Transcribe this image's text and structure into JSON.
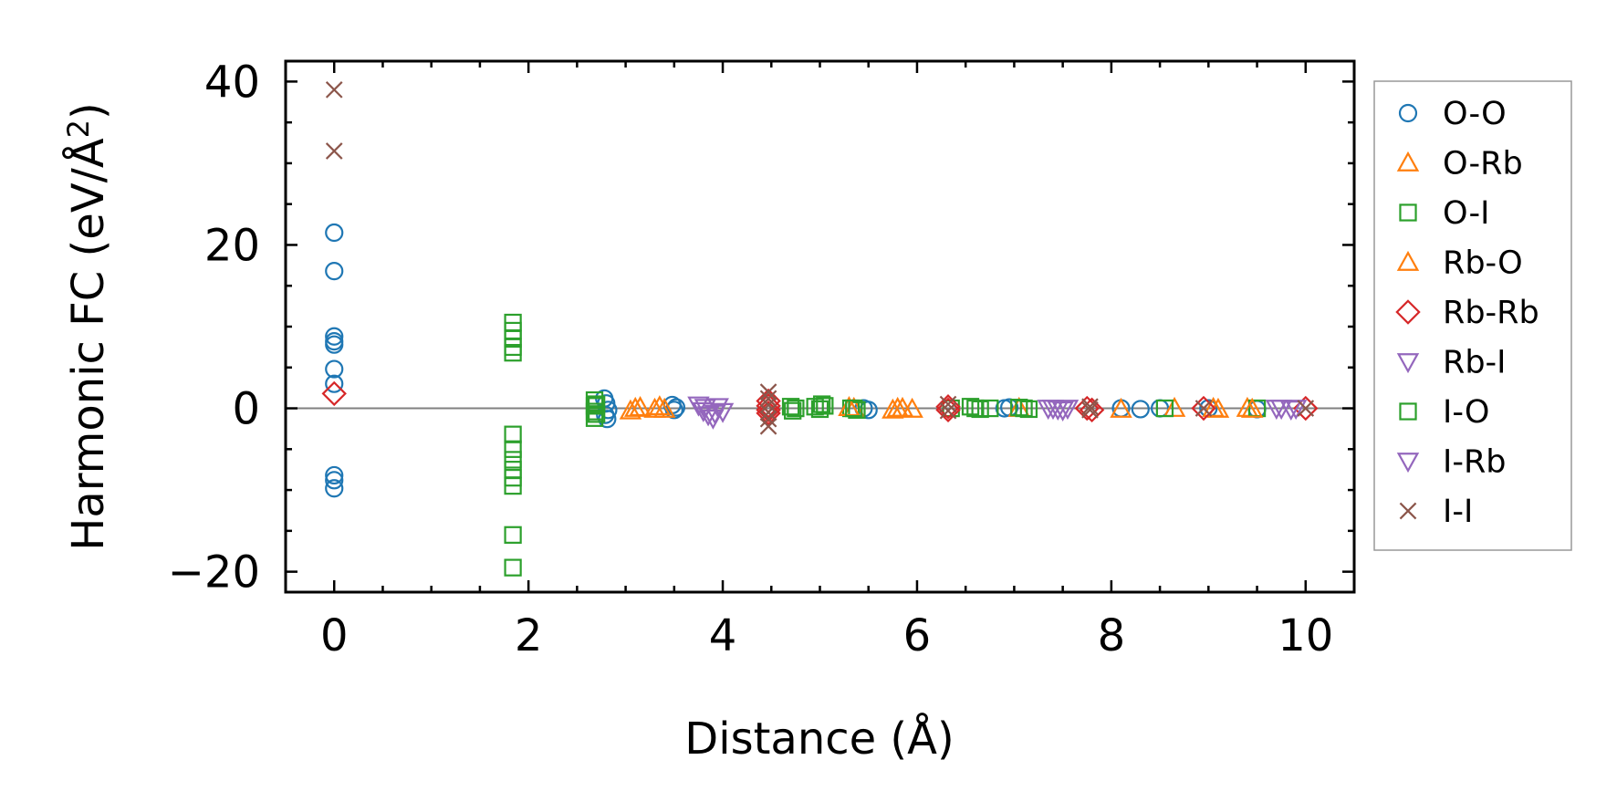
{
  "chart_data": {
    "type": "scatter",
    "xlabel": "Distance (Å)",
    "ylabel_main": "Harmonic FC (eV/Å",
    "ylabel_sup": "2",
    "ylabel_close": ")",
    "xlim": [
      -0.5,
      10.5
    ],
    "ylim": [
      -22.5,
      42.5
    ],
    "x_ticks": [
      0,
      2,
      4,
      6,
      8,
      10
    ],
    "x_tick_labels": [
      "0",
      "2",
      "4",
      "6",
      "8",
      "10"
    ],
    "y_ticks": [
      -20,
      0,
      20,
      40
    ],
    "y_tick_labels": [
      "−20",
      "0",
      "20",
      "40"
    ],
    "zero_line": true,
    "grid": false,
    "legend_position": "outside-right",
    "series": [
      {
        "name": "O-O",
        "marker": "circle",
        "color": "#1f77b4",
        "points": [
          [
            0,
            21.5
          ],
          [
            0,
            16.8
          ],
          [
            0,
            8.8
          ],
          [
            0,
            8.2
          ],
          [
            0,
            7.8
          ],
          [
            0,
            4.8
          ],
          [
            0,
            3.0
          ],
          [
            0,
            -8.2
          ],
          [
            0,
            -8.8
          ],
          [
            0,
            -9.8
          ],
          [
            2.78,
            1.2
          ],
          [
            2.8,
            0.6
          ],
          [
            2.82,
            -0.2
          ],
          [
            2.79,
            -0.8
          ],
          [
            2.81,
            -1.3
          ],
          [
            3.48,
            0.4
          ],
          [
            3.5,
            -0.2
          ],
          [
            3.52,
            0.1
          ],
          [
            5.45,
            0.0
          ],
          [
            5.5,
            -0.2
          ],
          [
            6.9,
            0.0
          ],
          [
            6.95,
            0.1
          ],
          [
            8.1,
            0.0
          ],
          [
            8.3,
            -0.1
          ],
          [
            8.5,
            0.0
          ],
          [
            9.0,
            0.0
          ],
          [
            9.5,
            -0.1
          ]
        ]
      },
      {
        "name": "O-Rb",
        "marker": "triangle-up",
        "color": "#ff7f0e",
        "points": [
          [
            3.05,
            -0.3
          ],
          [
            3.15,
            0.1
          ],
          [
            3.3,
            -0.1
          ],
          [
            3.35,
            0.2
          ],
          [
            5.35,
            0.0
          ],
          [
            5.75,
            -0.2
          ],
          [
            5.85,
            0.0
          ],
          [
            5.95,
            -0.1
          ],
          [
            7.05,
            0.0
          ],
          [
            8.1,
            -0.1
          ],
          [
            8.65,
            0.0
          ],
          [
            9.1,
            -0.1
          ],
          [
            9.4,
            0.0
          ]
        ]
      },
      {
        "name": "O-I",
        "marker": "square",
        "color": "#2ca02c",
        "points": [
          [
            1.84,
            10.5
          ],
          [
            1.84,
            9.5
          ],
          [
            1.84,
            8.5
          ],
          [
            1.84,
            7.5
          ],
          [
            1.84,
            6.8
          ],
          [
            1.84,
            -3.2
          ],
          [
            1.84,
            -5.0
          ],
          [
            1.84,
            -6.3
          ],
          [
            1.84,
            -7.5
          ],
          [
            1.84,
            -8.5
          ],
          [
            1.84,
            -9.5
          ],
          [
            1.84,
            -15.5
          ],
          [
            1.84,
            -19.5
          ],
          [
            2.68,
            1.0
          ],
          [
            2.68,
            0.3
          ],
          [
            2.68,
            -0.4
          ],
          [
            2.68,
            -1.2
          ],
          [
            4.7,
            0.2
          ],
          [
            4.72,
            -0.3
          ],
          [
            4.95,
            0.2
          ],
          [
            5.0,
            -0.1
          ],
          [
            5.05,
            0.3
          ],
          [
            5.32,
            0.0
          ],
          [
            5.38,
            -0.2
          ],
          [
            6.35,
            0.0
          ],
          [
            6.55,
            0.2
          ],
          [
            6.65,
            -0.1
          ],
          [
            6.75,
            0.0
          ],
          [
            7.05,
            0.1
          ],
          [
            7.15,
            -0.1
          ],
          [
            8.55,
            0.0
          ],
          [
            9.5,
            0.0
          ]
        ]
      },
      {
        "name": "Rb-O",
        "marker": "triangle-up",
        "color": "#ff7f0e",
        "points": [
          [
            3.1,
            0.0
          ],
          [
            3.4,
            -0.1
          ],
          [
            5.3,
            0.1
          ],
          [
            5.8,
            0.0
          ],
          [
            9.05,
            0.0
          ],
          [
            9.45,
            -0.1
          ]
        ]
      },
      {
        "name": "Rb-Rb",
        "marker": "diamond",
        "color": "#d62728",
        "points": [
          [
            0,
            1.8
          ],
          [
            4.47,
            0.9
          ],
          [
            4.47,
            0.3
          ],
          [
            4.47,
            -0.2
          ],
          [
            4.47,
            -0.6
          ],
          [
            6.32,
            0.2
          ],
          [
            6.32,
            -0.2
          ],
          [
            7.75,
            0.0
          ],
          [
            7.8,
            -0.2
          ],
          [
            8.95,
            0.0
          ],
          [
            10.0,
            0.0
          ]
        ]
      },
      {
        "name": "Rb-I",
        "marker": "triangle-down",
        "color": "#9467bd",
        "points": [
          [
            3.75,
            0.4
          ],
          [
            3.8,
            -0.3
          ],
          [
            3.85,
            -0.8
          ],
          [
            3.9,
            -1.2
          ],
          [
            3.95,
            0.2
          ],
          [
            4.0,
            -0.4
          ],
          [
            7.35,
            0.0
          ],
          [
            7.45,
            -0.1
          ],
          [
            7.55,
            0.0
          ],
          [
            9.7,
            0.0
          ],
          [
            9.85,
            -0.1
          ]
        ]
      },
      {
        "name": "I-O",
        "marker": "square",
        "color": "#2ca02c",
        "points": [
          [
            2.7,
            0.5
          ],
          [
            2.7,
            -0.7
          ],
          [
            4.75,
            0.0
          ],
          [
            5.02,
            0.5
          ],
          [
            5.35,
            0.0
          ],
          [
            6.6,
            0.0
          ],
          [
            7.1,
            0.0
          ]
        ]
      },
      {
        "name": "I-Rb",
        "marker": "triangle-down",
        "color": "#9467bd",
        "points": [
          [
            3.82,
            0.1
          ],
          [
            3.92,
            -0.6
          ],
          [
            7.4,
            0.0
          ],
          [
            7.5,
            -0.2
          ],
          [
            9.75,
            0.0
          ],
          [
            9.9,
            0.0
          ]
        ]
      },
      {
        "name": "I-I",
        "marker": "x",
        "color": "#8c564b",
        "points": [
          [
            0,
            39.0
          ],
          [
            0,
            31.5
          ],
          [
            4.47,
            2.0
          ],
          [
            4.47,
            1.2
          ],
          [
            4.47,
            0.4
          ],
          [
            4.47,
            -0.5
          ],
          [
            4.47,
            -1.3
          ],
          [
            4.47,
            -2.2
          ],
          [
            6.32,
            0.5
          ],
          [
            6.32,
            -0.3
          ],
          [
            7.78,
            0.2
          ],
          [
            7.78,
            -0.2
          ],
          [
            8.95,
            0.0
          ],
          [
            10.0,
            0.0
          ]
        ]
      }
    ]
  }
}
